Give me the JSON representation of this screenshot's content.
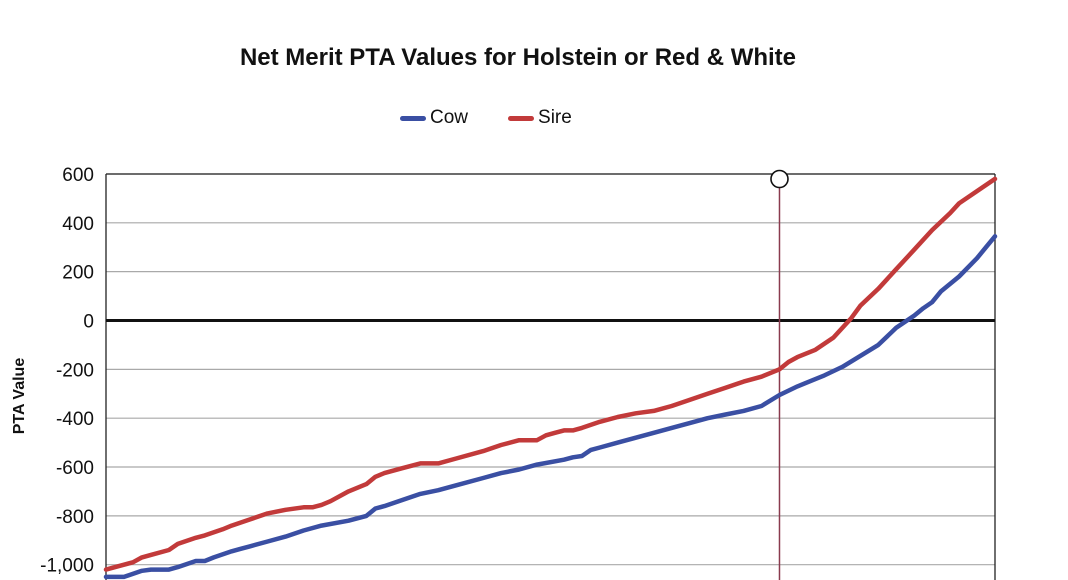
{
  "chart_data": {
    "type": "line",
    "title": "Net Merit PTA Values for Holstein or Red & White",
    "xlabel": "",
    "ylabel": "PTA Value",
    "ylim": [
      -1100,
      600
    ],
    "yticks": [
      {
        "value": 600,
        "label": "600"
      },
      {
        "value": 400,
        "label": "400"
      },
      {
        "value": 200,
        "label": "200"
      },
      {
        "value": 0,
        "label": "0"
      },
      {
        "value": -200,
        "label": "-200"
      },
      {
        "value": -400,
        "label": "-400"
      },
      {
        "value": -600,
        "label": "-600"
      },
      {
        "value": -800,
        "label": "-800"
      },
      {
        "value": -1000,
        "label": "-1,000"
      }
    ],
    "grid": true,
    "legend_position": "top-center",
    "x_points": 100,
    "marker_x": 75,
    "series": [
      {
        "name": "Cow",
        "color": "#3a4fa3",
        "x": [
          0,
          2,
          4,
          5,
          7,
          8,
          10,
          11,
          12,
          14,
          15,
          16,
          18,
          20,
          22,
          24,
          27,
          29,
          30,
          31,
          33,
          35,
          37,
          39,
          42,
          44,
          46,
          48,
          51,
          52,
          53,
          54,
          55,
          57,
          59,
          61,
          63,
          65,
          67,
          69,
          71,
          73,
          75,
          77,
          79,
          80,
          82,
          84,
          86,
          88,
          90,
          91,
          92,
          93,
          95,
          97,
          98,
          99
        ],
        "y": [
          -1050,
          -1050,
          -1025,
          -1020,
          -1020,
          -1010,
          -985,
          -985,
          -970,
          -945,
          -935,
          -925,
          -905,
          -885,
          -860,
          -840,
          -820,
          -800,
          -770,
          -760,
          -735,
          -710,
          -695,
          -675,
          -645,
          -625,
          -610,
          -590,
          -570,
          -560,
          -555,
          -530,
          -520,
          -500,
          -480,
          -460,
          -440,
          -420,
          -400,
          -385,
          -370,
          -350,
          -305,
          -270,
          -240,
          -225,
          -190,
          -145,
          -100,
          -30,
          20,
          50,
          75,
          120,
          180,
          255,
          300,
          345
        ]
      },
      {
        "name": "Sire",
        "color": "#c23a3a",
        "x": [
          0,
          2,
          3,
          4,
          5,
          7,
          8,
          10,
          11,
          13,
          14,
          16,
          18,
          20,
          22,
          23,
          24,
          25,
          27,
          29,
          30,
          31,
          33,
          35,
          37,
          39,
          42,
          44,
          46,
          48,
          49,
          50,
          51,
          52,
          53,
          55,
          57,
          59,
          61,
          63,
          65,
          67,
          69,
          71,
          73,
          75,
          76,
          77,
          79,
          81,
          83,
          84,
          86,
          88,
          90,
          92,
          94,
          95,
          97,
          99
        ],
        "y": [
          -1020,
          -1000,
          -990,
          -970,
          -960,
          -940,
          -915,
          -890,
          -880,
          -855,
          -840,
          -815,
          -790,
          -775,
          -765,
          -765,
          -755,
          -740,
          -700,
          -670,
          -640,
          -625,
          -605,
          -585,
          -585,
          -565,
          -535,
          -510,
          -490,
          -490,
          -470,
          -460,
          -450,
          -450,
          -440,
          -415,
          -395,
          -380,
          -370,
          -350,
          -325,
          -300,
          -275,
          -250,
          -230,
          -200,
          -170,
          -150,
          -120,
          -70,
          10,
          60,
          130,
          210,
          290,
          370,
          440,
          480,
          530,
          580
        ]
      }
    ]
  }
}
